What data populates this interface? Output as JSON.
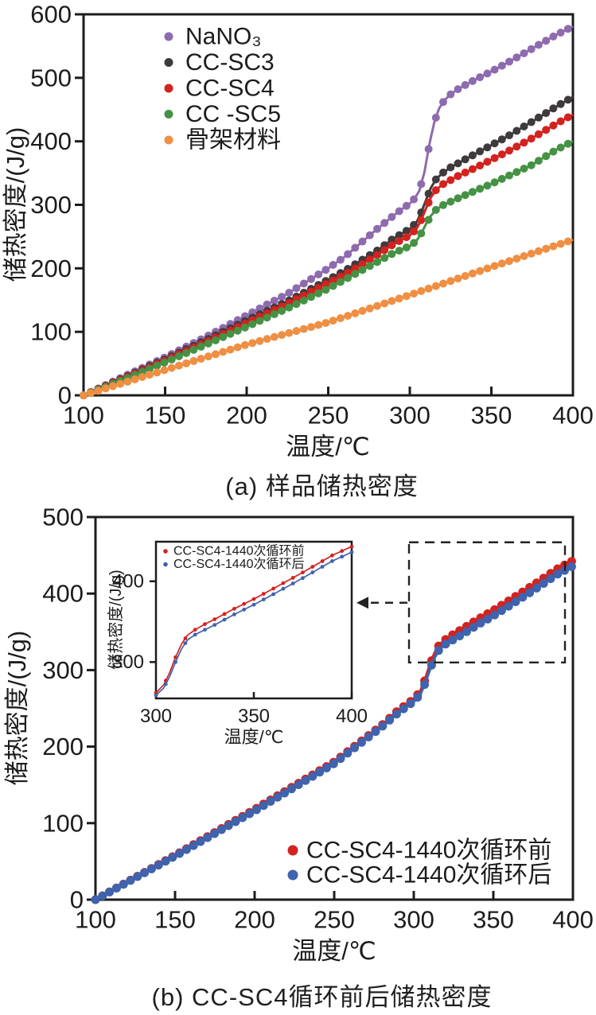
{
  "page": {
    "background": "#ffffff",
    "axis_color": "#1c1c1c"
  },
  "chart_data": [
    {
      "id": "a",
      "type": "line",
      "caption": "(a) 样品储热密度",
      "xlabel": "温度/℃",
      "ylabel": "储热密度/(J/g)",
      "xlim": [
        100,
        400
      ],
      "ylim": [
        0,
        600
      ],
      "xticks": [
        100,
        150,
        200,
        250,
        300,
        350,
        400
      ],
      "yticks": [
        0,
        100,
        200,
        300,
        400,
        500,
        600
      ],
      "legend_position": "top-left",
      "grid": false,
      "series": [
        {
          "name": "NaNO3",
          "label": "NaNO₃",
          "color": "#8e6bae",
          "points": [
            [
              100,
              0
            ],
            [
              125,
              30
            ],
            [
              150,
              60
            ],
            [
              175,
              92
            ],
            [
              200,
              126
            ],
            [
              225,
              160
            ],
            [
              250,
              200
            ],
            [
              260,
              218
            ],
            [
              270,
              240
            ],
            [
              280,
              262
            ],
            [
              290,
              283
            ],
            [
              295,
              293
            ],
            [
              300,
              302
            ],
            [
              303,
              310
            ],
            [
              306,
              323
            ],
            [
              309,
              352
            ],
            [
              312,
              395
            ],
            [
              315,
              430
            ],
            [
              318,
              452
            ],
            [
              321,
              464
            ],
            [
              325,
              474
            ],
            [
              330,
              483
            ],
            [
              340,
              497
            ],
            [
              350,
              510
            ],
            [
              360,
              524
            ],
            [
              375,
              546
            ],
            [
              390,
              568
            ],
            [
              400,
              581
            ]
          ]
        },
        {
          "name": "CC-SC3",
          "label": "CC-SC3",
          "color": "#3f3a3c",
          "points": [
            [
              100,
              0
            ],
            [
              125,
              28
            ],
            [
              150,
              57
            ],
            [
              175,
              87
            ],
            [
              200,
              118
            ],
            [
              225,
              148
            ],
            [
              250,
              182
            ],
            [
              260,
              196
            ],
            [
              270,
              212
            ],
            [
              280,
              228
            ],
            [
              290,
              247
            ],
            [
              300,
              262
            ],
            [
              304,
              272
            ],
            [
              307,
              288
            ],
            [
              310,
              308
            ],
            [
              313,
              327
            ],
            [
              316,
              340
            ],
            [
              320,
              350
            ],
            [
              325,
              359
            ],
            [
              330,
              366
            ],
            [
              340,
              380
            ],
            [
              350,
              394
            ],
            [
              360,
              408
            ],
            [
              375,
              431
            ],
            [
              390,
              455
            ],
            [
              400,
              470
            ]
          ]
        },
        {
          "name": "CC-SC4",
          "label": "CC-SC4",
          "color": "#d2231f",
          "points": [
            [
              100,
              0
            ],
            [
              125,
              27
            ],
            [
              150,
              55
            ],
            [
              175,
              84
            ],
            [
              200,
              114
            ],
            [
              225,
              144
            ],
            [
              250,
              177
            ],
            [
              260,
              190
            ],
            [
              270,
              205
            ],
            [
              280,
              221
            ],
            [
              290,
              238
            ],
            [
              300,
              252
            ],
            [
              304,
              262
            ],
            [
              307,
              276
            ],
            [
              310,
              295
            ],
            [
              313,
              312
            ],
            [
              316,
              323
            ],
            [
              320,
              332
            ],
            [
              325,
              339
            ],
            [
              330,
              346
            ],
            [
              340,
              358
            ],
            [
              350,
              371
            ],
            [
              360,
              384
            ],
            [
              375,
              405
            ],
            [
              390,
              428
            ],
            [
              400,
              442
            ]
          ]
        },
        {
          "name": "CC-SC5",
          "label": "CC -SC5",
          "color": "#459245",
          "points": [
            [
              100,
              0
            ],
            [
              125,
              25
            ],
            [
              150,
              52
            ],
            [
              175,
              80
            ],
            [
              200,
              108
            ],
            [
              225,
              137
            ],
            [
              250,
              168
            ],
            [
              260,
              182
            ],
            [
              270,
              196
            ],
            [
              280,
              210
            ],
            [
              290,
              224
            ],
            [
              300,
              235
            ],
            [
              304,
              243
            ],
            [
              307,
              255
            ],
            [
              310,
              270
            ],
            [
              313,
              283
            ],
            [
              316,
              292
            ],
            [
              320,
              299
            ],
            [
              325,
              305
            ],
            [
              330,
              311
            ],
            [
              340,
              322
            ],
            [
              350,
              333
            ],
            [
              360,
              345
            ],
            [
              375,
              363
            ],
            [
              390,
              387
            ],
            [
              400,
              400
            ]
          ]
        },
        {
          "name": "skeleton-material",
          "label": "骨架材料",
          "color": "#ef8f43",
          "points": [
            [
              100,
              0
            ],
            [
              150,
              40
            ],
            [
              200,
              80
            ],
            [
              250,
              115
            ],
            [
              300,
              158
            ],
            [
              350,
              202
            ],
            [
              400,
              245
            ]
          ]
        }
      ]
    },
    {
      "id": "b",
      "type": "line",
      "caption": "(b) CC-SC4循环前后储热密度",
      "xlabel": "温度/℃",
      "ylabel": "储热密度/(J/g)",
      "xlim": [
        100,
        400
      ],
      "ylim": [
        0,
        500
      ],
      "xticks": [
        100,
        150,
        200,
        250,
        300,
        350,
        400
      ],
      "yticks": [
        0,
        100,
        200,
        300,
        400,
        500
      ],
      "legend_position": "bottom-right",
      "grid": false,
      "series": [
        {
          "name": "CC-SC4-before-1440-cycles",
          "label": "CC-SC4-1440次循环前",
          "color": "#d2231f",
          "points": [
            [
              100,
              0
            ],
            [
              150,
              58
            ],
            [
              200,
              118
            ],
            [
              250,
              180
            ],
            [
              260,
              196
            ],
            [
              270,
              212
            ],
            [
              280,
              228
            ],
            [
              290,
              247
            ],
            [
              300,
              262
            ],
            [
              304,
              272
            ],
            [
              307,
              287
            ],
            [
              310,
              306
            ],
            [
              313,
              322
            ],
            [
              316,
              333
            ],
            [
              320,
              340
            ],
            [
              325,
              347
            ],
            [
              330,
              353
            ],
            [
              340,
              366
            ],
            [
              350,
              378
            ],
            [
              360,
              391
            ],
            [
              375,
              411
            ],
            [
              390,
              432
            ],
            [
              400,
              443
            ]
          ]
        },
        {
          "name": "CC-SC4-after-1440-cycles",
          "label": "CC-SC4-1440次循环后",
          "color": "#3f63ad",
          "points": [
            [
              100,
              0
            ],
            [
              150,
              57
            ],
            [
              200,
              116
            ],
            [
              250,
              178
            ],
            [
              260,
              194
            ],
            [
              270,
              210
            ],
            [
              280,
              226
            ],
            [
              290,
              244
            ],
            [
              300,
              259
            ],
            [
              304,
              268
            ],
            [
              307,
              282
            ],
            [
              310,
              300
            ],
            [
              313,
              316
            ],
            [
              316,
              327
            ],
            [
              320,
              334
            ],
            [
              325,
              340
            ],
            [
              330,
              346
            ],
            [
              340,
              359
            ],
            [
              350,
              371
            ],
            [
              360,
              384
            ],
            [
              375,
              404
            ],
            [
              390,
              425
            ],
            [
              400,
              436
            ]
          ]
        }
      ],
      "inset": {
        "xlabel": "温度/℃",
        "ylabel": "储热密度/(J/g)",
        "xlim": [
          300,
          400
        ],
        "ylim": [
          255,
          449
        ],
        "xticks": [
          300,
          350,
          400
        ],
        "yticks": [
          300,
          400
        ],
        "legend_position": "top-left"
      },
      "zoom_box": {
        "x_range": [
          297,
          395
        ],
        "y_range": [
          310,
          467
        ]
      },
      "arrow_y_value": 388
    }
  ]
}
